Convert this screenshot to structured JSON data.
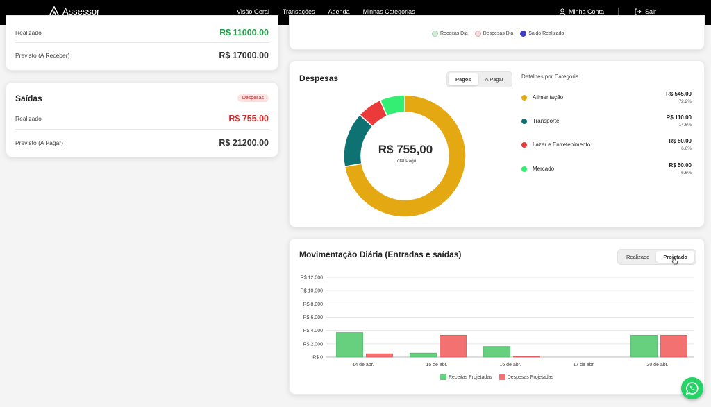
{
  "brand": {
    "name": "Assessor"
  },
  "nav": {
    "items": [
      "Visão Geral",
      "Transações",
      "Agenda",
      "Minhas Categorias"
    ]
  },
  "account": {
    "label": "Minha Conta",
    "logout": "Sair"
  },
  "entradas": {
    "realizado_label": "Realizado",
    "realizado_value": "R$ 11000.00",
    "previsto_label": "Previsto (A Receber)",
    "previsto_value": "R$ 17000.00"
  },
  "saidas": {
    "title": "Saídas",
    "badge": "Despesas",
    "realizado_label": "Realizado",
    "realizado_value": "R$ 755.00",
    "previsto_label": "Previsto (A Pagar)",
    "previsto_value": "R$ 21200.00"
  },
  "top_legend": {
    "items": [
      "Receitas Dia",
      "Despesas Dia",
      "Saldo Realizado"
    ]
  },
  "despesas": {
    "title": "Despesas",
    "toggle": [
      "Pagos",
      "A Pagar"
    ],
    "active": "Pagos",
    "center_value": "R$ 755,00",
    "center_label": "Total Pago",
    "details_title": "Detalhes por Categoria",
    "categories": [
      {
        "name": "Alimentação",
        "amount": "R$ 545.00",
        "percent": "72.2%",
        "color": "#e4a812"
      },
      {
        "name": "Transporte",
        "amount": "R$ 110.00",
        "percent": "14.6%",
        "color": "#0f7272"
      },
      {
        "name": "Lazer e Entretenimento",
        "amount": "R$ 50.00",
        "percent": "6.6%",
        "color": "#ea3a3a"
      },
      {
        "name": "Mercado",
        "amount": "R$ 50.00",
        "percent": "6.6%",
        "color": "#34ee73"
      }
    ]
  },
  "movimentacao": {
    "title": "Movimentação Diária (Entradas e saídas)",
    "toggle": [
      "Realizado",
      "Projetado"
    ],
    "active": "Projetado"
  },
  "chart_data": {
    "type": "bar",
    "categories": [
      "14 de abr.",
      "15 de abr.",
      "16 de abr.",
      "17 de abr.",
      "20 de abr."
    ],
    "series": [
      {
        "name": "Receitas Projetadas",
        "values": [
          3700,
          600,
          1600,
          0,
          3300
        ],
        "color": "#67d07f"
      },
      {
        "name": "Despesas Projetadas",
        "values": [
          500,
          3300,
          100,
          0,
          3300
        ],
        "color": "#f47171"
      }
    ],
    "ylim": [
      0,
      12000
    ],
    "yticks": [
      0,
      2000,
      4000,
      6000,
      8000,
      10000,
      12000
    ],
    "ytick_labels": [
      "R$ 0",
      "R$ 2.000",
      "R$ 4.000",
      "R$ 6.000",
      "R$ 8.000",
      "R$ 10.000",
      "R$ 12.000"
    ],
    "legend": "bottom",
    "grid": true
  }
}
